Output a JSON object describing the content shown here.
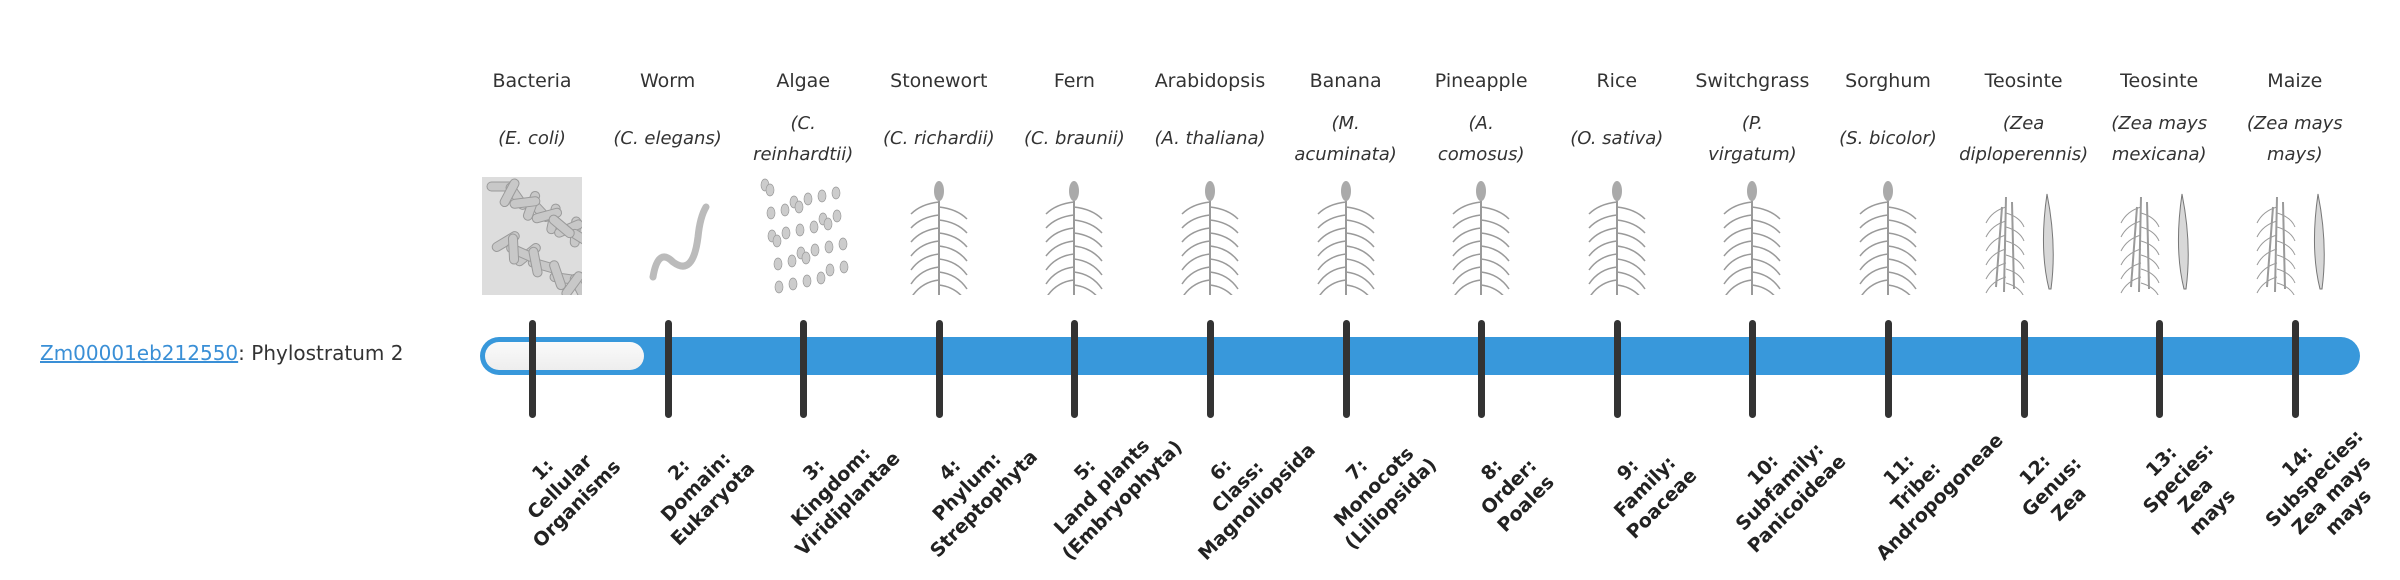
{
  "gene": {
    "id": "Zm00001eb212550",
    "separator": ": ",
    "text": "Phylostratum 2",
    "phylostratum": 2
  },
  "colors": {
    "bar": "#3898db",
    "link": "#3a8fd6",
    "tick": "#333333"
  },
  "strata": [
    {
      "common": "Bacteria",
      "latin": [
        "(E. coli)"
      ],
      "icon": "bacteria-illustration",
      "label": [
        "1:",
        "Cellular",
        "Organisms"
      ]
    },
    {
      "common": "Worm",
      "latin": [
        "(C. elegans)"
      ],
      "icon": "worm-illustration",
      "label": [
        "2:",
        "Domain:",
        "Eukaryota"
      ]
    },
    {
      "common": "Algae",
      "latin": [
        "(C.",
        "reinhardtii)"
      ],
      "icon": "algae-illustration",
      "label": [
        "3:",
        "Kingdom:",
        "Viridiplantae"
      ]
    },
    {
      "common": "Stonewort",
      "latin": [
        "(C. richardii)"
      ],
      "icon": "stonewort-illustration",
      "label": [
        "4:",
        "Phylum:",
        "Streptophyta"
      ]
    },
    {
      "common": "Fern",
      "latin": [
        "(C. braunii)"
      ],
      "icon": "fern-illustration",
      "label": [
        "5:",
        "Land plants",
        "(Embryophyta)"
      ]
    },
    {
      "common": "Arabidopsis",
      "latin": [
        "(A. thaliana)"
      ],
      "icon": "arabidopsis-illustration",
      "label": [
        "6:",
        "Class:",
        "Magnoliopsida"
      ]
    },
    {
      "common": "Banana",
      "latin": [
        "(M.",
        "acuminata)"
      ],
      "icon": "banana-illustration",
      "label": [
        "7:",
        "Monocots",
        "(Liliopsida)"
      ]
    },
    {
      "common": "Pineapple",
      "latin": [
        "(A.",
        "comosus)"
      ],
      "icon": "pineapple-illustration",
      "label": [
        "8:",
        "Order:",
        "Poales"
      ]
    },
    {
      "common": "Rice",
      "latin": [
        "(O. sativa)"
      ],
      "icon": "rice-illustration",
      "label": [
        "9:",
        "Family:",
        "Poaceae"
      ]
    },
    {
      "common": "Switchgrass",
      "latin": [
        "(P.",
        "virgatum)"
      ],
      "icon": "switchgrass-illustration",
      "label": [
        "10:",
        "Subfamily:",
        "Panicoideae"
      ]
    },
    {
      "common": "Sorghum",
      "latin": [
        "(S. bicolor)"
      ],
      "icon": "sorghum-illustration",
      "label": [
        "11:",
        "Tribe:",
        "Andropogoneae"
      ]
    },
    {
      "common": "Teosinte",
      "latin": [
        "(Zea",
        "diploperennis)"
      ],
      "icon": "teosinte-illustration",
      "label": [
        "12:",
        "Genus:",
        "Zea"
      ]
    },
    {
      "common": "Teosinte",
      "latin": [
        "(Zea mays",
        "mexicana)"
      ],
      "icon": "teosinte-illustration",
      "label": [
        "13:",
        "Species:",
        "Zea",
        "mays"
      ]
    },
    {
      "common": "Maize",
      "latin": [
        "(Zea mays",
        "mays)"
      ],
      "icon": "maize-illustration",
      "label": [
        "14:",
        "Subspecies:",
        "Zea mays",
        "mays"
      ]
    }
  ]
}
